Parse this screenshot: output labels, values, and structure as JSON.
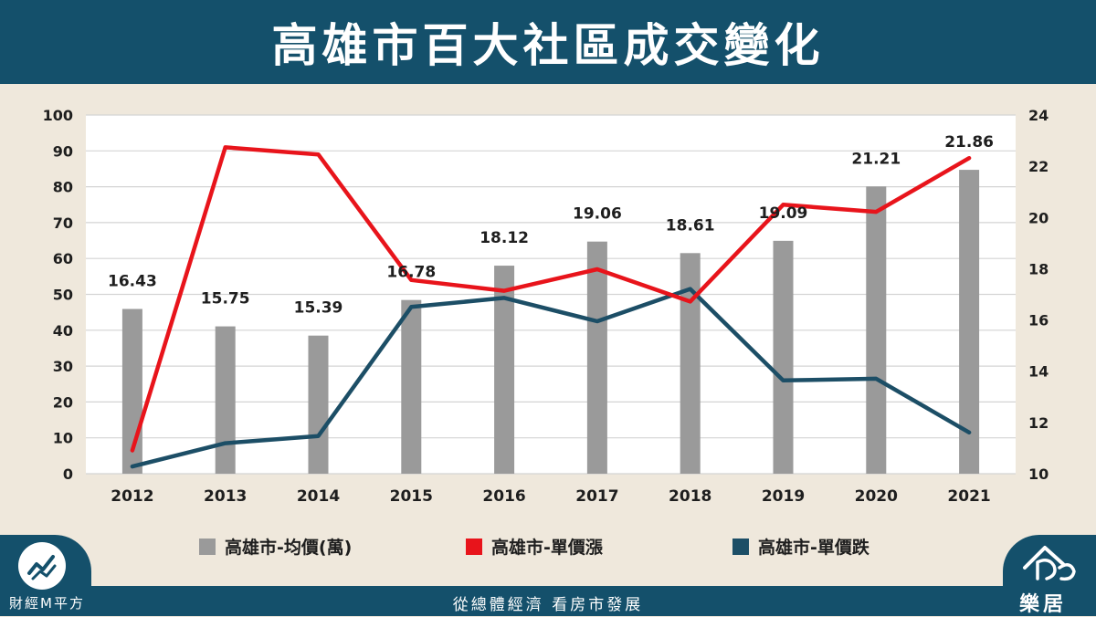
{
  "header": {
    "title": "高雄市百大社區成交變化"
  },
  "footer": {
    "slogan": "從總體經濟  看房市發展",
    "brand_left": "財經M平方",
    "brand_right": "樂居"
  },
  "colors": {
    "header_bg": "#14506b",
    "bar": "#9a9a9a",
    "rise_line": "#e8141b",
    "fall_line": "#1c4e66"
  },
  "chart_data": {
    "type": "bar",
    "categories": [
      "2012",
      "2013",
      "2014",
      "2015",
      "2016",
      "2017",
      "2018",
      "2019",
      "2020",
      "2021"
    ],
    "y_left": {
      "min": 0,
      "max": 100,
      "ticks": [
        0,
        10,
        20,
        30,
        40,
        50,
        60,
        70,
        80,
        90,
        100
      ]
    },
    "y_right": {
      "min": 10,
      "max": 24,
      "ticks": [
        10,
        12,
        14,
        16,
        18,
        20,
        22,
        24
      ]
    },
    "grid": true,
    "legend_position": "bottom",
    "series": [
      {
        "name": "高雄市-均價(萬)",
        "type": "bar",
        "axis": "right",
        "values": [
          16.43,
          15.75,
          15.39,
          16.78,
          18.12,
          19.06,
          18.61,
          19.09,
          21.21,
          21.86
        ],
        "labels": [
          "16.43",
          "15.75",
          "15.39",
          "16.78",
          "18.12",
          "19.06",
          "18.61",
          "19.09",
          "21.21",
          "21.86"
        ]
      },
      {
        "name": "高雄市-單價漲",
        "type": "line",
        "axis": "left",
        "values": [
          6.5,
          91,
          89,
          54,
          51,
          57,
          48,
          75,
          73,
          88
        ]
      },
      {
        "name": "高雄市-單價跌",
        "type": "line",
        "axis": "left",
        "values": [
          2,
          8.5,
          10.5,
          46.5,
          49,
          42.5,
          51.5,
          26,
          26.5,
          11.5
        ]
      }
    ]
  }
}
